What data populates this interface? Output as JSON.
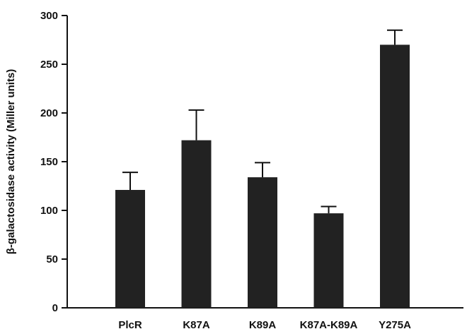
{
  "chart_data": {
    "type": "bar",
    "title": "",
    "xlabel": "",
    "ylabel": "β-galactosidase activity (Miller units)",
    "categories": [
      "PlcR",
      "K87A",
      "K89A",
      "K87A-K89A",
      "Y275A"
    ],
    "values": [
      121,
      172,
      134,
      97,
      270
    ],
    "errors": [
      18,
      31,
      15,
      7,
      15
    ],
    "ylim": [
      0,
      300
    ],
    "yticks": [
      0,
      50,
      100,
      150,
      200,
      250,
      300
    ],
    "grid": false,
    "bar_color": "#222222"
  }
}
